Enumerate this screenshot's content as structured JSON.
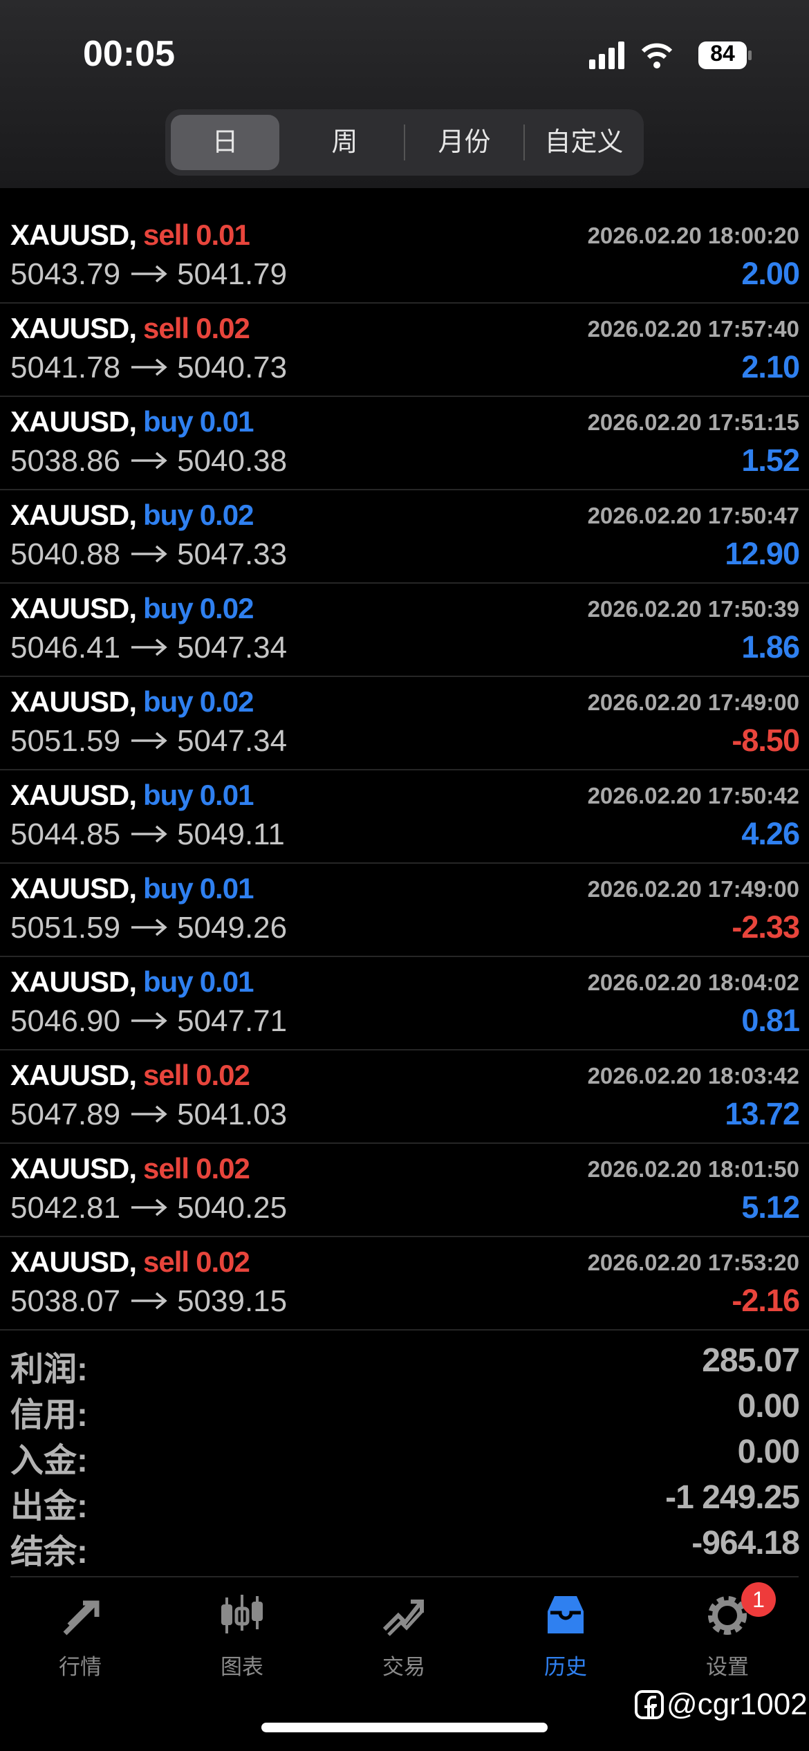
{
  "status_bar": {
    "time": "00:05",
    "battery": "84"
  },
  "tabs": [
    {
      "label": "日",
      "active": true
    },
    {
      "label": "周",
      "active": false
    },
    {
      "label": "月份",
      "active": false
    },
    {
      "label": "自定义",
      "active": false
    }
  ],
  "trades": [
    {
      "symbol": "XAUUSD,",
      "side": "sell",
      "volume": "0.01",
      "time": "2026.02.20 18:00:20",
      "open": "5043.79",
      "close": "5041.79",
      "profit": "2.00"
    },
    {
      "symbol": "XAUUSD,",
      "side": "sell",
      "volume": "0.02",
      "time": "2026.02.20 17:57:40",
      "open": "5041.78",
      "close": "5040.73",
      "profit": "2.10"
    },
    {
      "symbol": "XAUUSD,",
      "side": "buy",
      "volume": "0.01",
      "time": "2026.02.20 17:51:15",
      "open": "5038.86",
      "close": "5040.38",
      "profit": "1.52"
    },
    {
      "symbol": "XAUUSD,",
      "side": "buy",
      "volume": "0.02",
      "time": "2026.02.20 17:50:47",
      "open": "5040.88",
      "close": "5047.33",
      "profit": "12.90"
    },
    {
      "symbol": "XAUUSD,",
      "side": "buy",
      "volume": "0.02",
      "time": "2026.02.20 17:50:39",
      "open": "5046.41",
      "close": "5047.34",
      "profit": "1.86"
    },
    {
      "symbol": "XAUUSD,",
      "side": "buy",
      "volume": "0.02",
      "time": "2026.02.20 17:49:00",
      "open": "5051.59",
      "close": "5047.34",
      "profit": "-8.50"
    },
    {
      "symbol": "XAUUSD,",
      "side": "buy",
      "volume": "0.01",
      "time": "2026.02.20 17:50:42",
      "open": "5044.85",
      "close": "5049.11",
      "profit": "4.26"
    },
    {
      "symbol": "XAUUSD,",
      "side": "buy",
      "volume": "0.01",
      "time": "2026.02.20 17:49:00",
      "open": "5051.59",
      "close": "5049.26",
      "profit": "-2.33"
    },
    {
      "symbol": "XAUUSD,",
      "side": "buy",
      "volume": "0.01",
      "time": "2026.02.20 18:04:02",
      "open": "5046.90",
      "close": "5047.71",
      "profit": "0.81"
    },
    {
      "symbol": "XAUUSD,",
      "side": "sell",
      "volume": "0.02",
      "time": "2026.02.20 18:03:42",
      "open": "5047.89",
      "close": "5041.03",
      "profit": "13.72"
    },
    {
      "symbol": "XAUUSD,",
      "side": "sell",
      "volume": "0.02",
      "time": "2026.02.20 18:01:50",
      "open": "5042.81",
      "close": "5040.25",
      "profit": "5.12"
    },
    {
      "symbol": "XAUUSD,",
      "side": "sell",
      "volume": "0.02",
      "time": "2026.02.20 17:53:20",
      "open": "5038.07",
      "close": "5039.15",
      "profit": "-2.16"
    }
  ],
  "summary": [
    {
      "label": "利润:",
      "value": "285.07"
    },
    {
      "label": "信用:",
      "value": "0.00"
    },
    {
      "label": "入金:",
      "value": "0.00"
    },
    {
      "label": "出金:",
      "value": "-1 249.25"
    },
    {
      "label": "结余:",
      "value": "-964.18"
    }
  ],
  "nav": [
    {
      "label": "行情",
      "active": false
    },
    {
      "label": "图表",
      "active": false
    },
    {
      "label": "交易",
      "active": false
    },
    {
      "label": "历史",
      "active": true
    },
    {
      "label": "设置",
      "active": false,
      "badge": "1"
    }
  ],
  "watermark": "@cgr1002"
}
